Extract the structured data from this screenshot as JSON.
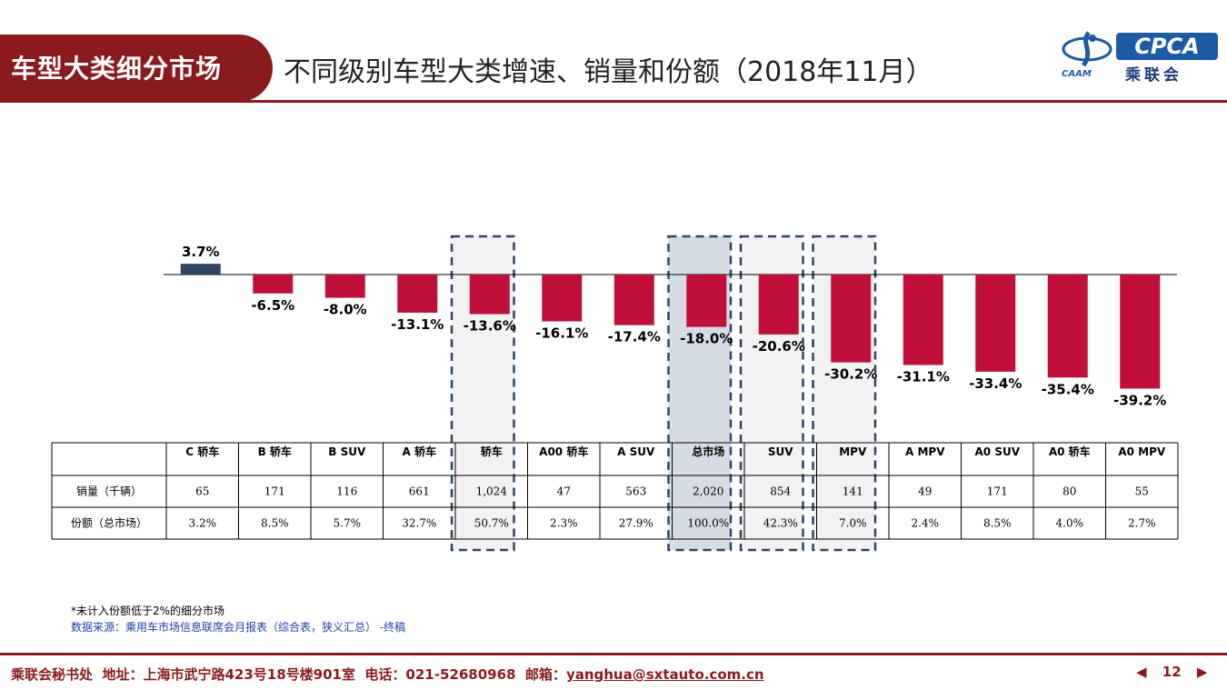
{
  "header": {
    "section": "车型大类细分市场",
    "title": "不同级别车型大类增速、销量和份额（2018年11月）"
  },
  "logo": {
    "brand": "CPCA",
    "sub": "乘联会",
    "caam": "CAAM"
  },
  "chart_data": {
    "type": "bar",
    "categories": [
      "C 轿车",
      "B 轿车",
      "B SUV",
      "A 轿车",
      "轿车",
      "A00 轿车",
      "A SUV",
      "总市场",
      "SUV",
      "MPV",
      "A MPV",
      "A0 SUV",
      "A0 轿车",
      "A0 MPV"
    ],
    "series": [
      {
        "values": [
          3.7,
          -6.5,
          -8.0,
          -13.1,
          -13.6,
          -16.1,
          -17.4,
          -18.0,
          -20.6,
          -30.2,
          -31.1,
          -33.4,
          -35.4,
          -39.2
        ]
      }
    ],
    "data_labels": [
      "3.7%",
      "-6.5%",
      "-8.0%",
      "-13.1%",
      "-13.6%",
      "-16.1%",
      "-17.4%",
      "-18.0%",
      "-20.6%",
      "-30.2%",
      "-31.1%",
      "-33.4%",
      "-35.4%",
      "-39.2%"
    ],
    "highlighted_categories": [
      "轿车",
      "总市场",
      "SUV",
      "MPV"
    ],
    "positive_color": "#2f4563",
    "negative_color": "#c0103a",
    "table": {
      "rows": [
        {
          "label": "销量（千辆）",
          "values": [
            "65",
            "171",
            "116",
            "661",
            "1,024",
            "47",
            "563",
            "2,020",
            "854",
            "141",
            "49",
            "171",
            "80",
            "55"
          ]
        },
        {
          "label": "份额（总市场）",
          "values": [
            "3.2%",
            "8.5%",
            "5.7%",
            "32.7%",
            "50.7%",
            "2.3%",
            "27.9%",
            "100.0%",
            "42.3%",
            "7.0%",
            "2.4%",
            "8.5%",
            "4.0%",
            "2.7%"
          ]
        }
      ]
    }
  },
  "notes": {
    "note1": "*未计入份额低于2%的细分市场",
    "note2": "数据来源：乘用车市场信息联席会月报表（综合表，狭义汇总）  -终稿"
  },
  "footer": {
    "org": "乘联会秘书处",
    "address": "地址：上海市武宁路423号18号楼901室",
    "phone": "电话：021-52680968",
    "email_label": "邮箱：",
    "email": "yanghua@sxtauto.com.cn",
    "page": "12"
  }
}
